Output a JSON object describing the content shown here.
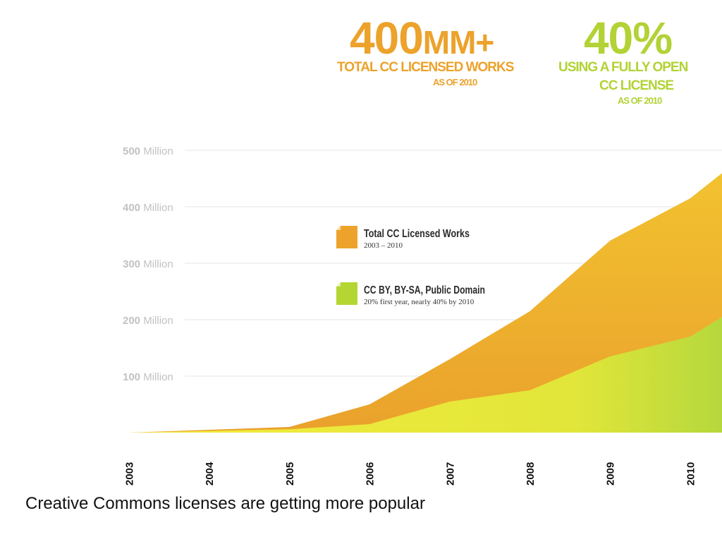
{
  "header": {
    "stat1": {
      "number": "400",
      "unit": "MM+",
      "label": "TOTAL CC LICENSED WORKS",
      "sub": "AS OF 2010",
      "color": "#ECA22B"
    },
    "stat2": {
      "number": "40%",
      "label_line1": "USING A FULLY OPEN",
      "label_line2": "CC LICENSE",
      "sub": "AS OF 2010",
      "color": "#B2D235"
    }
  },
  "chart_data": {
    "type": "area",
    "x": [
      2003,
      2004,
      2005,
      2006,
      2007,
      2008,
      2009,
      2010,
      2010.4
    ],
    "categories": [
      "2003",
      "2004",
      "2005",
      "2006",
      "2007",
      "2008",
      "2009",
      "2010"
    ],
    "y_ticks": [
      "500 Million",
      "400 Million",
      "300 Million",
      "200 Million",
      "100 Million"
    ],
    "y_tick_values": [
      500,
      400,
      300,
      200,
      100
    ],
    "ylim": [
      0,
      500
    ],
    "grid": true,
    "legend_position": "center-left",
    "series": [
      {
        "name": "Total CC Licensed Works",
        "subtitle": "2003 – 2010",
        "values": [
          0,
          5,
          10,
          50,
          130,
          215,
          340,
          415,
          460
        ],
        "color": "#EFAF2D"
      },
      {
        "name": "CC BY, BY-SA, Public Domain",
        "subtitle": "20% first year, nearly 40% by 2010",
        "values": [
          0,
          3,
          6,
          15,
          55,
          75,
          135,
          170,
          205
        ],
        "color": "#D8E53A"
      }
    ]
  },
  "caption": "Creative Commons licenses are getting more popular"
}
